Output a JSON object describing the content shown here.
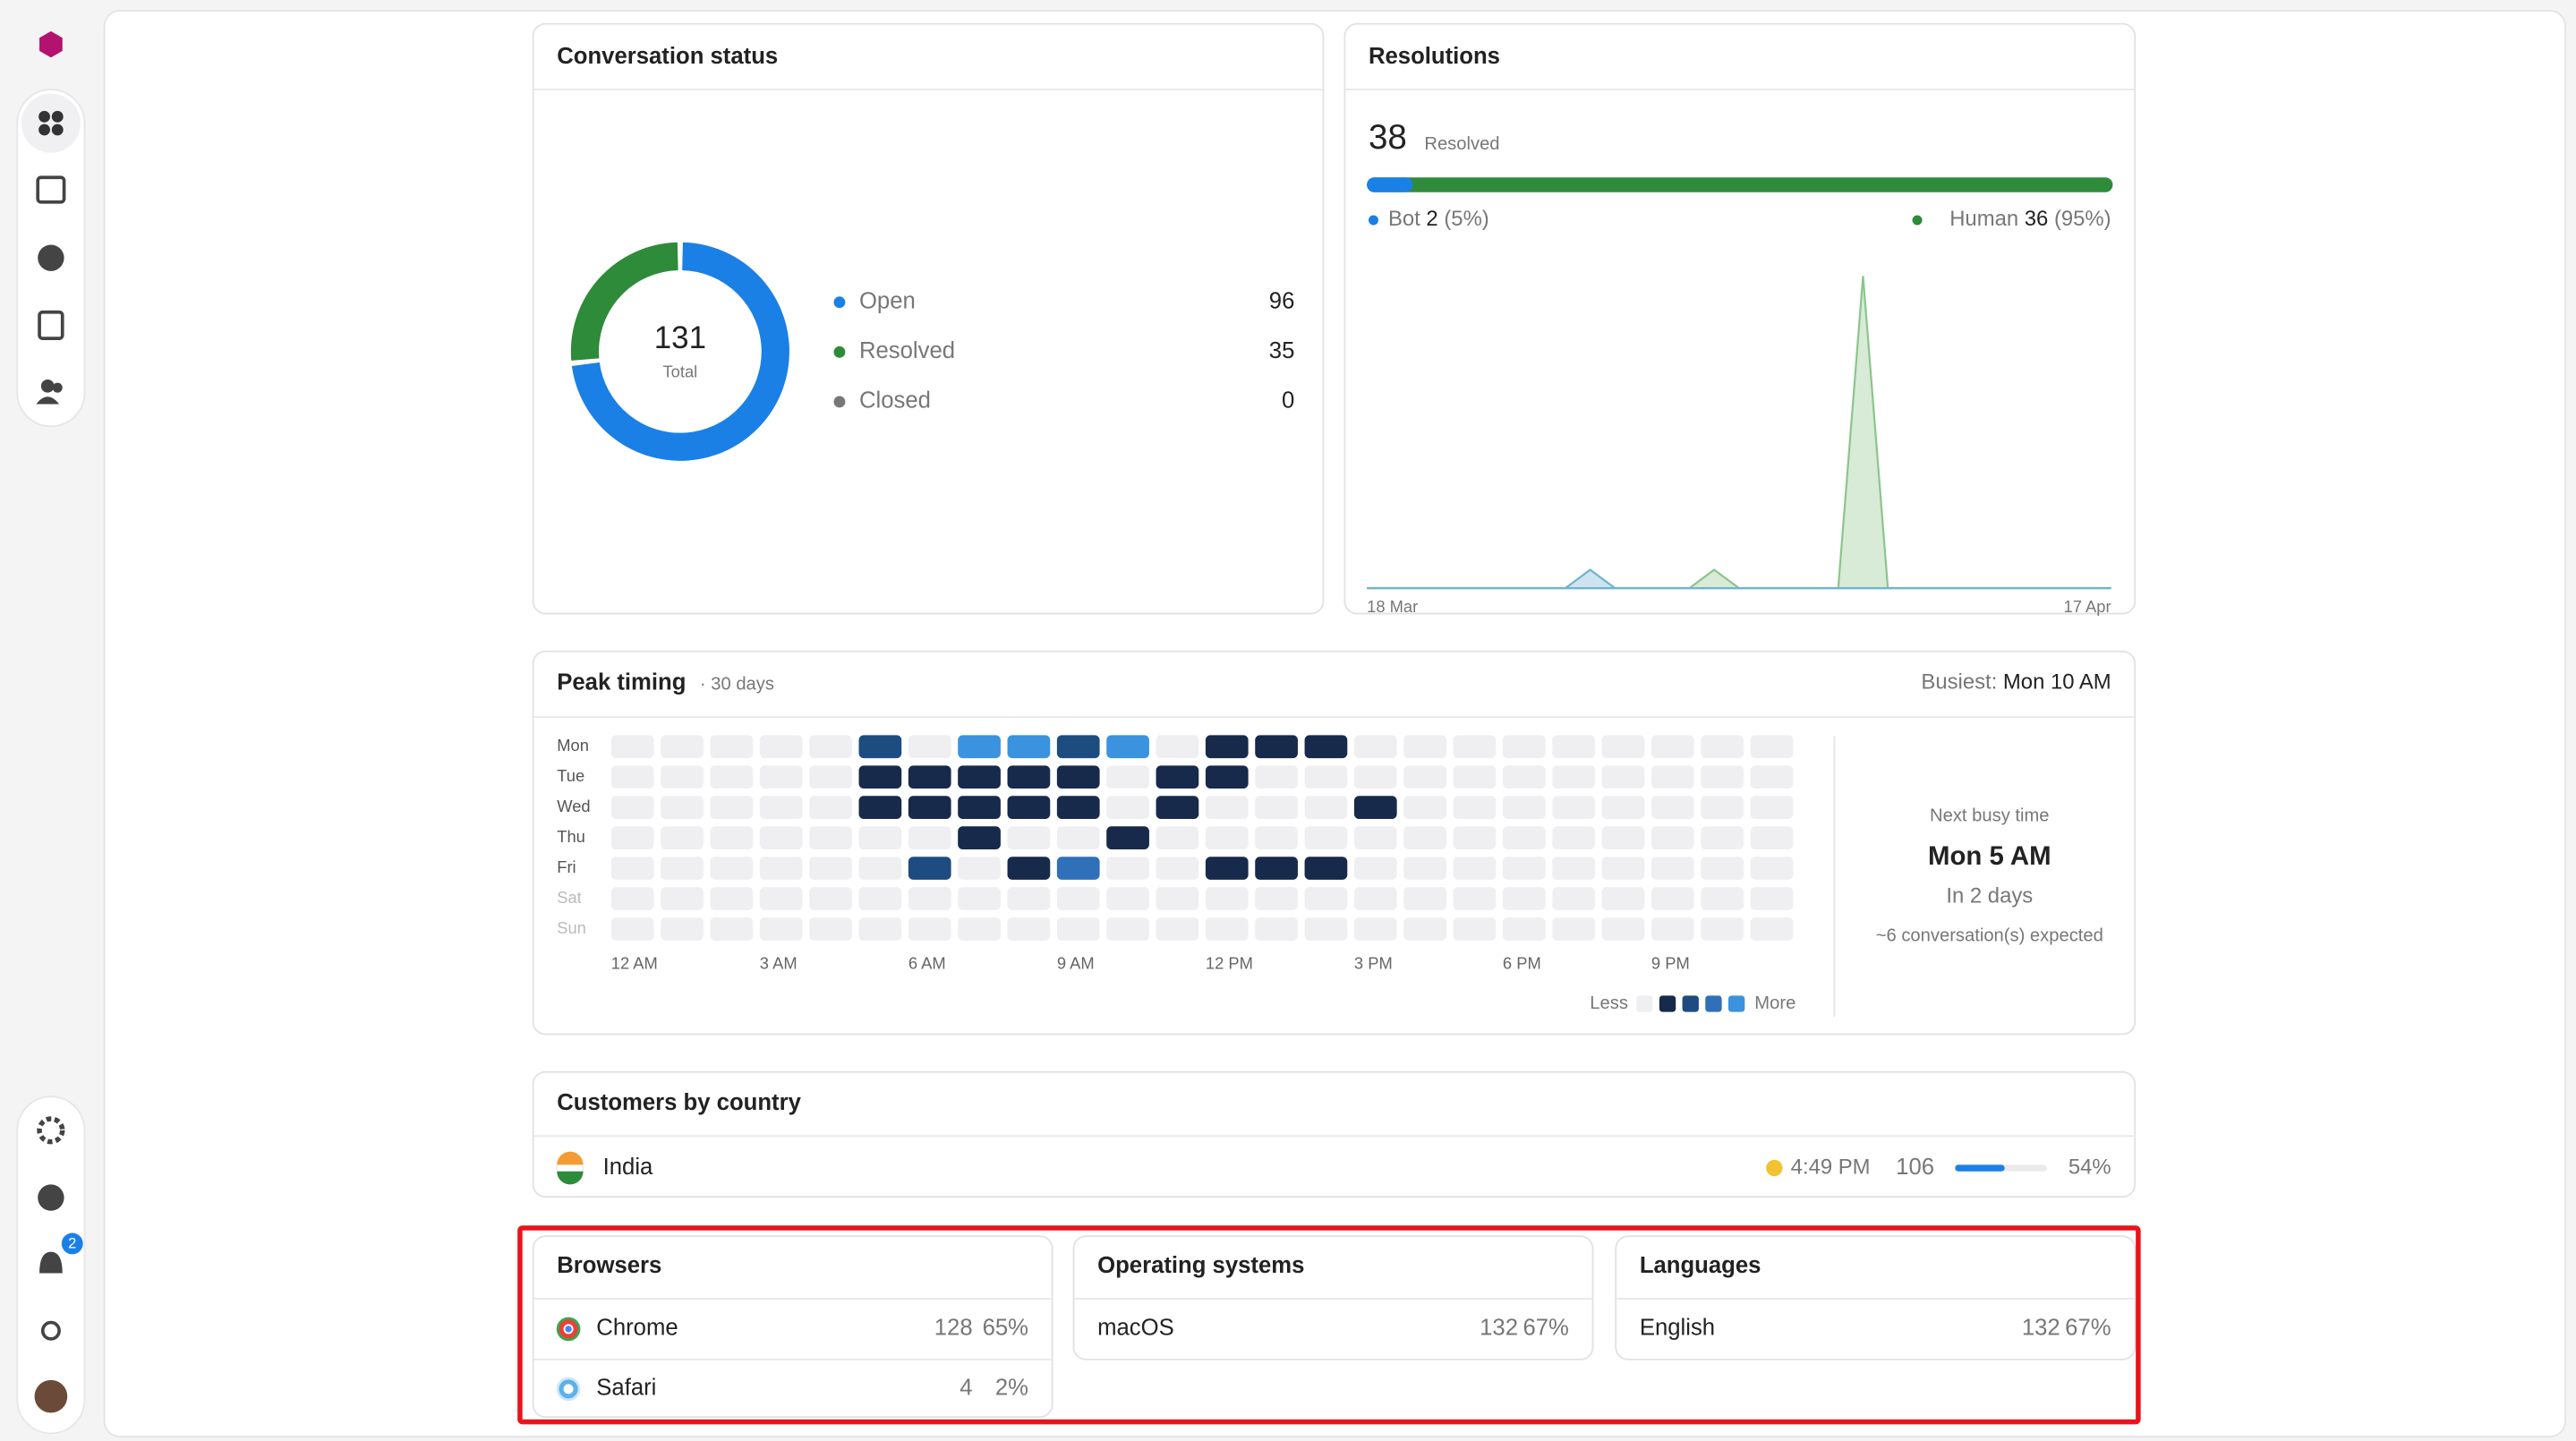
{
  "sidebar": {
    "notification_count": "2"
  },
  "conversation_status": {
    "title": "Conversation status",
    "total": 131,
    "total_label": "Total",
    "items": [
      {
        "name": "Open",
        "value": 96,
        "color": "#1a80e6"
      },
      {
        "name": "Resolved",
        "value": 35,
        "color": "#2e8b3a"
      },
      {
        "name": "Closed",
        "value": 0,
        "color": "#777777"
      }
    ]
  },
  "resolutions": {
    "title": "Resolutions",
    "count": 38,
    "count_label": "Resolved",
    "bot": {
      "name": "Bot",
      "value": 2,
      "pct": "(5%)",
      "color": "#1a80e6"
    },
    "human": {
      "name": "Human",
      "value": 36,
      "pct": "(95%)",
      "color": "#2e8b3a"
    },
    "chart": {
      "type": "area",
      "x_start": "18 Mar",
      "x_end": "17 Apr",
      "series": [
        {
          "color": "#6fb3d3",
          "values": [
            0,
            0,
            0,
            0,
            0,
            0,
            0,
            0,
            0,
            2,
            0,
            0,
            0,
            0,
            0,
            0,
            0,
            0,
            0,
            0,
            0,
            0,
            0,
            0,
            0,
            0,
            0,
            0,
            0,
            0,
            0
          ]
        },
        {
          "color": "#8cc58c",
          "values": [
            0,
            0,
            0,
            0,
            0,
            0,
            0,
            0,
            0,
            0,
            0,
            0,
            0,
            0,
            2,
            0,
            0,
            0,
            0,
            0,
            34,
            0,
            0,
            0,
            0,
            0,
            0,
            0,
            0,
            0,
            0
          ]
        }
      ]
    }
  },
  "peak_timing": {
    "title": "Peak timing",
    "subtitle": "· 30 days",
    "busiest_label": "Busiest:",
    "busiest_value": "Mon 10 AM",
    "days": [
      "Mon",
      "Tue",
      "Wed",
      "Thu",
      "Fri",
      "Sat",
      "Sun"
    ],
    "hour_labels": [
      "12 AM",
      "3 AM",
      "6 AM",
      "9 AM",
      "12 PM",
      "3 PM",
      "6 PM",
      "9 PM"
    ],
    "level_colors": [
      "#efeff1",
      "#172a4b",
      "#1d4c80",
      "#2f70b9",
      "#3b93df"
    ],
    "levels": [
      [
        0,
        0,
        0,
        0,
        0,
        2,
        0,
        4,
        4,
        2,
        4,
        0,
        1,
        1,
        1,
        0,
        0,
        0,
        0,
        0,
        0,
        0,
        0,
        0
      ],
      [
        0,
        0,
        0,
        0,
        0,
        1,
        1,
        1,
        1,
        1,
        0,
        1,
        1,
        0,
        0,
        0,
        0,
        0,
        0,
        0,
        0,
        0,
        0,
        0
      ],
      [
        0,
        0,
        0,
        0,
        0,
        1,
        1,
        1,
        1,
        1,
        0,
        1,
        0,
        0,
        0,
        1,
        0,
        0,
        0,
        0,
        0,
        0,
        0,
        0
      ],
      [
        0,
        0,
        0,
        0,
        0,
        0,
        0,
        1,
        0,
        0,
        1,
        0,
        0,
        0,
        0,
        0,
        0,
        0,
        0,
        0,
        0,
        0,
        0,
        0
      ],
      [
        0,
        0,
        0,
        0,
        0,
        0,
        2,
        0,
        1,
        3,
        0,
        0,
        1,
        1,
        1,
        0,
        0,
        0,
        0,
        0,
        0,
        0,
        0,
        0
      ],
      [
        0,
        0,
        0,
        0,
        0,
        0,
        0,
        0,
        0,
        0,
        0,
        0,
        0,
        0,
        0,
        0,
        0,
        0,
        0,
        0,
        0,
        0,
        0,
        0
      ],
      [
        0,
        0,
        0,
        0,
        0,
        0,
        0,
        0,
        0,
        0,
        0,
        0,
        0,
        0,
        0,
        0,
        0,
        0,
        0,
        0,
        0,
        0,
        0,
        0
      ]
    ],
    "legend_less": "Less",
    "legend_more": "More",
    "next_busy": {
      "label": "Next busy time",
      "value": "Mon 5 AM",
      "when": "In 2 days",
      "expected": "~6 conversation(s) expected"
    }
  },
  "customers_by_country": {
    "title": "Customers by country",
    "rows": [
      {
        "country": "India",
        "local_time": "4:49 PM",
        "count": 106,
        "share": {
          "value": 54,
          "label": "54%"
        }
      }
    ]
  },
  "browsers": {
    "title": "Browsers",
    "rows": [
      {
        "name": "Chrome",
        "count": 128,
        "pct": "65%"
      },
      {
        "name": "Safari",
        "count": 4,
        "pct": "2%"
      }
    ]
  },
  "operating_systems": {
    "title": "Operating systems",
    "rows": [
      {
        "name": "macOS",
        "count": 132,
        "pct": "67%"
      }
    ]
  },
  "languages": {
    "title": "Languages",
    "rows": [
      {
        "name": "English",
        "count": 132,
        "pct": "67%"
      }
    ]
  }
}
